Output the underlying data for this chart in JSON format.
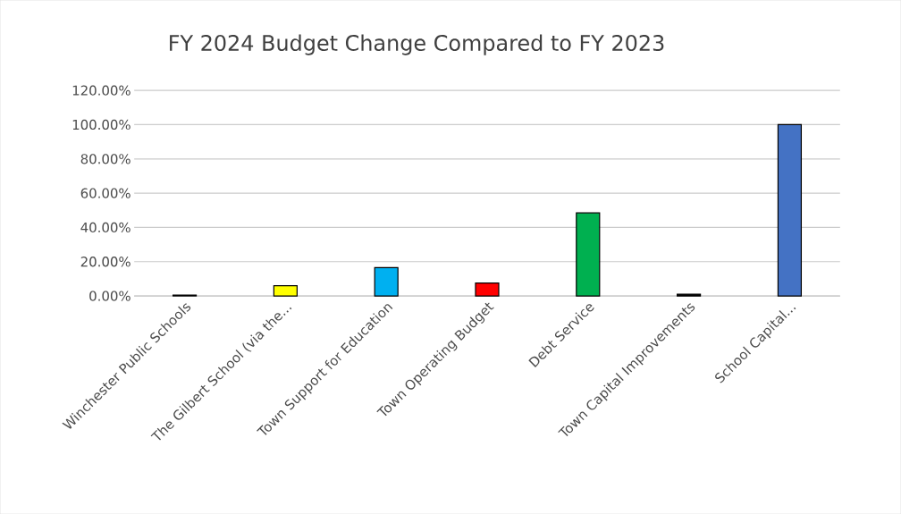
{
  "chart_data": {
    "type": "bar",
    "title": "FY 2024 Budget Change Compared to FY 2023",
    "categories": [
      "Winchester Public Schools",
      "The Gilbert School (via the...",
      "Town Support for Education",
      "Town Operating Budget",
      "Debt Service",
      "Town Capital Improvements",
      "School Capital..."
    ],
    "values": [
      0.5,
      6,
      16.5,
      7.5,
      48.5,
      1,
      100
    ],
    "colors": [
      "#000000",
      "#ffff00",
      "#00b0f0",
      "#ff0000",
      "#00b050",
      "#000000",
      "#4472c4"
    ],
    "ylim": [
      0,
      120
    ],
    "yticks": [
      {
        "value": 0,
        "label": "0.00%"
      },
      {
        "value": 20,
        "label": "20.00%"
      },
      {
        "value": 40,
        "label": "40.00%"
      },
      {
        "value": 60,
        "label": "60.00%"
      },
      {
        "value": 80,
        "label": "80.00%"
      },
      {
        "value": 100,
        "label": "100.00%"
      },
      {
        "value": 120,
        "label": "120.00%"
      }
    ],
    "grid": "y"
  }
}
